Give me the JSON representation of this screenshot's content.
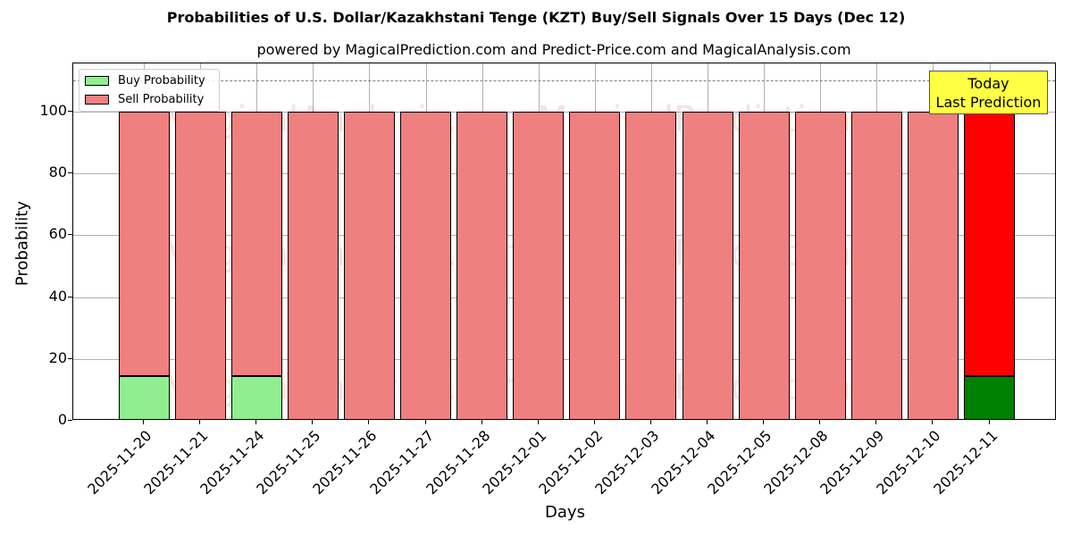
{
  "header": {
    "title": "Probabilities of U.S. Dollar/Kazakhstani Tenge (KZT) Buy/Sell Signals Over 15 Days (Dec 12)",
    "subtitle": "powered by MagicalPrediction.com and Predict-Price.com and MagicalAnalysis.com"
  },
  "legend": {
    "buy_label": "Buy Probability",
    "sell_label": "Sell Probability"
  },
  "annotation": {
    "line1": "Today",
    "line2": "Last Prediction"
  },
  "watermarks": [
    "MagicalAnalysis.com",
    "MagicalPrediction.com"
  ],
  "axes": {
    "xlabel": "Days",
    "ylabel": "Probability",
    "yticks": [
      "0",
      "20",
      "40",
      "60",
      "80",
      "100"
    ]
  },
  "colors": {
    "buy": "#90ee90",
    "sell": "#f08080",
    "buy_today": "#008000",
    "sell_today": "#ff0000",
    "annotation_bg": "#ffff44"
  },
  "chart_data": {
    "type": "bar",
    "stacked": true,
    "title": "Probabilities of U.S. Dollar/Kazakhstani Tenge (KZT) Buy/Sell Signals Over 15 Days (Dec 12)",
    "subtitle": "powered by MagicalPrediction.com and Predict-Price.com and MagicalAnalysis.com",
    "xlabel": "Days",
    "ylabel": "Probability",
    "ylim": [
      0,
      115
    ],
    "yticks": [
      0,
      20,
      40,
      60,
      80,
      100
    ],
    "grid": true,
    "legend_position": "upper left",
    "reference_line": {
      "y": 110,
      "style": "dashed",
      "color": "#808080"
    },
    "categories": [
      "2025-11-20",
      "2025-11-21",
      "2025-11-24",
      "2025-11-25",
      "2025-11-26",
      "2025-11-27",
      "2025-11-28",
      "2025-12-01",
      "2025-12-02",
      "2025-12-03",
      "2025-12-04",
      "2025-12-05",
      "2025-12-08",
      "2025-12-09",
      "2025-12-10",
      "2025-12-11"
    ],
    "series": [
      {
        "name": "Buy Probability",
        "values": [
          14.5,
          0,
          14.5,
          0,
          0,
          0,
          0,
          0,
          0,
          0,
          0,
          0,
          0,
          0,
          0,
          14.5
        ]
      },
      {
        "name": "Sell Probability",
        "values": [
          85.5,
          100,
          85.5,
          100,
          100,
          100,
          100,
          100,
          100,
          100,
          100,
          100,
          100,
          100,
          100,
          85.5
        ]
      }
    ],
    "annotations": [
      {
        "text": "Today\nLast Prediction",
        "x": "2025-12-11"
      }
    ]
  }
}
